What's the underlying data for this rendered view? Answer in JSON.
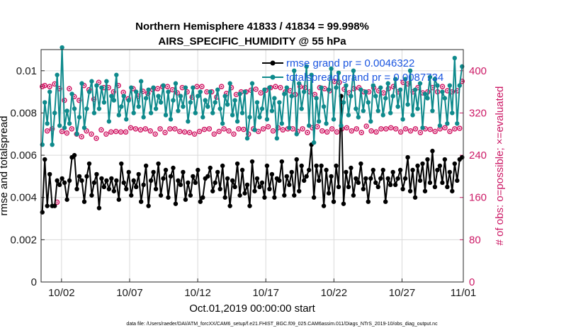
{
  "chart_data": {
    "type": "line",
    "title_line1": "Northern Hemisphere 41833 / 41834 = 99.998%",
    "title_line2": "AIRS_SPECIFIC_HUMIDITY @ 55 hPa",
    "xlabel": "Oct.01,2019 00:00:00 start",
    "ylabel_left": "rmse and totalspread",
    "ylabel_right": "# of obs: o=possible; ×=evaluated",
    "footnote": "data file: /Users/raeder/DAI/ATM_forcXX/CAM6_setup/f.e21.FHIST_BGC.f09_025.CAM6assim.011/Diags_NTrS_2019-10/obs_diag_output.nc",
    "x_range": [
      0.5,
      31.5
    ],
    "ylim_left": [
      0,
      0.011
    ],
    "ylim_right": [
      0,
      440
    ],
    "x_ticks": [
      {
        "value": 2,
        "label": "10/02"
      },
      {
        "value": 7,
        "label": "10/07"
      },
      {
        "value": 12,
        "label": "10/12"
      },
      {
        "value": 17,
        "label": "10/17"
      },
      {
        "value": 22,
        "label": "10/22"
      },
      {
        "value": 27,
        "label": "10/27"
      },
      {
        "value": 32,
        "label": "11/01"
      }
    ],
    "y_ticks_left": [
      {
        "value": 0,
        "label": "0"
      },
      {
        "value": 0.002,
        "label": "0.002"
      },
      {
        "value": 0.004,
        "label": "0.004"
      },
      {
        "value": 0.006,
        "label": "0.006"
      },
      {
        "value": 0.008,
        "label": "0.008"
      },
      {
        "value": 0.01,
        "label": "0.01"
      }
    ],
    "y_ticks_right": [
      {
        "value": 0,
        "label": "0"
      },
      {
        "value": 80,
        "label": "80"
      },
      {
        "value": 160,
        "label": "160"
      },
      {
        "value": 240,
        "label": "240"
      },
      {
        "value": 320,
        "label": "320"
      },
      {
        "value": 400,
        "label": "400"
      }
    ],
    "series": [
      {
        "name": "rmse",
        "legend": "rmse grand pr = 0.0046322",
        "color": "#000000",
        "axis": "left",
        "values": [
          0.0033,
          0.0058,
          0.0036,
          0.0051,
          0.0036,
          0.0036,
          0.0048,
          0.0046,
          0.0049,
          0.0047,
          0.0039,
          0.0048,
          0.0059,
          0.006,
          0.0044,
          0.005,
          0.0048,
          0.0038,
          0.005,
          0.0056,
          0.0041,
          0.0047,
          0.0051,
          0.0035,
          0.0049,
          0.0045,
          0.0048,
          0.0044,
          0.0049,
          0.0043,
          0.0048,
          0.0039,
          0.0056,
          0.0047,
          0.0044,
          0.0052,
          0.0041,
          0.0048,
          0.0045,
          0.0051,
          0.0038,
          0.0046,
          0.0055,
          0.0036,
          0.0048,
          0.0052,
          0.0044,
          0.0056,
          0.0041,
          0.0049,
          0.0053,
          0.004,
          0.005,
          0.0054,
          0.0037,
          0.0048,
          0.0046,
          0.0052,
          0.0039,
          0.0047,
          0.0041,
          0.005,
          0.0047,
          0.0053,
          0.0038,
          0.004,
          0.0049,
          0.005,
          0.0054,
          0.0043,
          0.0047,
          0.0052,
          0.0044,
          0.0055,
          0.004,
          0.0049,
          0.0036,
          0.0048,
          0.0045,
          0.0056,
          0.0041,
          0.0053,
          0.0042,
          0.0046,
          0.0036,
          0.0057,
          0.0043,
          0.0049,
          0.0045,
          0.0047,
          0.004,
          0.0055,
          0.0044,
          0.0051,
          0.004,
          0.0049,
          0.0048,
          0.0057,
          0.0041,
          0.005,
          0.0046,
          0.0052,
          0.0041,
          0.0058,
          0.0043,
          0.0055,
          0.0048,
          0.005,
          0.0053,
          0.0065,
          0.004,
          0.0055,
          0.0048,
          0.0055,
          0.0036,
          0.0053,
          0.0042,
          0.005,
          0.0038,
          0.0055,
          0.0045,
          0.0088,
          0.0037,
          0.0052,
          0.0045,
          0.0054,
          0.0041,
          0.0049,
          0.0047,
          0.0056,
          0.0044,
          0.0049,
          0.0038,
          0.0049,
          0.0053,
          0.0047,
          0.0045,
          0.0049,
          0.0053,
          0.0038,
          0.0049,
          0.0046,
          0.0052,
          0.0046,
          0.0049,
          0.0053,
          0.0044,
          0.0049,
          0.0059,
          0.0043,
          0.0053,
          0.004,
          0.0055,
          0.0048,
          0.0056,
          0.0043,
          0.0058,
          0.0047,
          0.0062,
          0.0045,
          0.0053,
          0.0055,
          0.0047,
          0.0058,
          0.0045,
          0.0052,
          0.0043,
          0.0056,
          0.0048,
          0.0058,
          0.0059
        ]
      },
      {
        "name": "totalspread",
        "legend": "totalspread grand pr = 0.0087734",
        "color": "#0e8a8c",
        "axis": "left",
        "values": [
          0.0065,
          0.0085,
          0.0075,
          0.009,
          0.0065,
          0.008,
          0.0098,
          0.0074,
          0.0111,
          0.0073,
          0.0081,
          0.0075,
          0.0089,
          0.0082,
          0.007,
          0.0078,
          0.0094,
          0.0073,
          0.0082,
          0.009,
          0.0095,
          0.008,
          0.0093,
          0.0082,
          0.0092,
          0.0085,
          0.0095,
          0.0076,
          0.0088,
          0.0086,
          0.0098,
          0.0079,
          0.0083,
          0.0088,
          0.0077,
          0.0086,
          0.0092,
          0.008,
          0.009,
          0.0083,
          0.0095,
          0.0078,
          0.0087,
          0.0091,
          0.008,
          0.0092,
          0.0082,
          0.0088,
          0.0085,
          0.0093,
          0.0079,
          0.009,
          0.0077,
          0.0086,
          0.0094,
          0.0081,
          0.0088,
          0.0083,
          0.0092,
          0.0076,
          0.0085,
          0.0092,
          0.008,
          0.0088,
          0.009,
          0.0078,
          0.0086,
          0.0083,
          0.009,
          0.008,
          0.0085,
          0.0091,
          0.0082,
          0.0075,
          0.0088,
          0.0084,
          0.0094,
          0.0079,
          0.0086,
          0.0076,
          0.0089,
          0.008,
          0.009,
          0.0068,
          0.0078,
          0.0094,
          0.0072,
          0.0085,
          0.0078,
          0.0082,
          0.0091,
          0.0077,
          0.0092,
          0.0081,
          0.0087,
          0.0068,
          0.0085,
          0.0075,
          0.0089,
          0.0092,
          0.0073,
          0.0088,
          0.01,
          0.007,
          0.0094,
          0.0082,
          0.009,
          0.0102,
          0.0074,
          0.0098,
          0.0066,
          0.0087,
          0.0076,
          0.0092,
          0.0083,
          0.0075,
          0.0091,
          0.0101,
          0.0077,
          0.0092,
          0.0099,
          0.0074,
          0.0085,
          0.0093,
          0.0079,
          0.0088,
          0.01,
          0.0082,
          0.0078,
          0.0091,
          0.0081,
          0.009,
          0.0085,
          0.0076,
          0.0093,
          0.0088,
          0.0081,
          0.0092,
          0.0079,
          0.0087,
          0.0094,
          0.008,
          0.0088,
          0.0096,
          0.0083,
          0.0091,
          0.0077,
          0.0096,
          0.0084,
          0.01,
          0.0079,
          0.0091,
          0.0082,
          0.0094,
          0.0073,
          0.0089,
          0.0087,
          0.0097,
          0.0081,
          0.0096,
          0.0093,
          0.0074,
          0.009,
          0.0087,
          0.0075,
          0.0093,
          0.008,
          0.0106,
          0.0075,
          0.0093,
          0.0102
        ]
      }
    ],
    "obs_possible": {
      "name": "# of obs possible",
      "color": "#d11a66",
      "axis": "right",
      "values": [
        370,
        372,
        286,
        370,
        290,
        375,
        151,
        366,
        285,
        344,
        282,
        366,
        290,
        351,
        280,
        344,
        275,
        372,
        286,
        364,
        280,
        346,
        272,
        378,
        288,
        368,
        280,
        368,
        284,
        360,
        285,
        372,
        284,
        359,
        284,
        347,
        292,
        366,
        290,
        352,
        288,
        361,
        290,
        357,
        286,
        364,
        280,
        366,
        290,
        370,
        283,
        370,
        290,
        364,
        290,
        358,
        285,
        368,
        284,
        360,
        283,
        350,
        280,
        370,
        285,
        370,
        289,
        360,
        290,
        360,
        280,
        350,
        285,
        370,
        290,
        357,
        286,
        368,
        280,
        355,
        290,
        360,
        289,
        360,
        280,
        363,
        290,
        365,
        285,
        358,
        290,
        363,
        294,
        368,
        286,
        370,
        292,
        368,
        288,
        360,
        290,
        362,
        290,
        355,
        285,
        370,
        290,
        368,
        283,
        360,
        292,
        355,
        294,
        368,
        286,
        366,
        284,
        362,
        290,
        380,
        284,
        378,
        290,
        365,
        292,
        358,
        286,
        366,
        290,
        368,
        283,
        360,
        295,
        360,
        286,
        368,
        284,
        362,
        290,
        358,
        290,
        366,
        292,
        370,
        290,
        360,
        284,
        378,
        290,
        375,
        286,
        360,
        290,
        368,
        283,
        358,
        290,
        360,
        289,
        368,
        285,
        360,
        290,
        370,
        292,
        362,
        285,
        360,
        290,
        362,
        291,
        380
      ]
    }
  }
}
